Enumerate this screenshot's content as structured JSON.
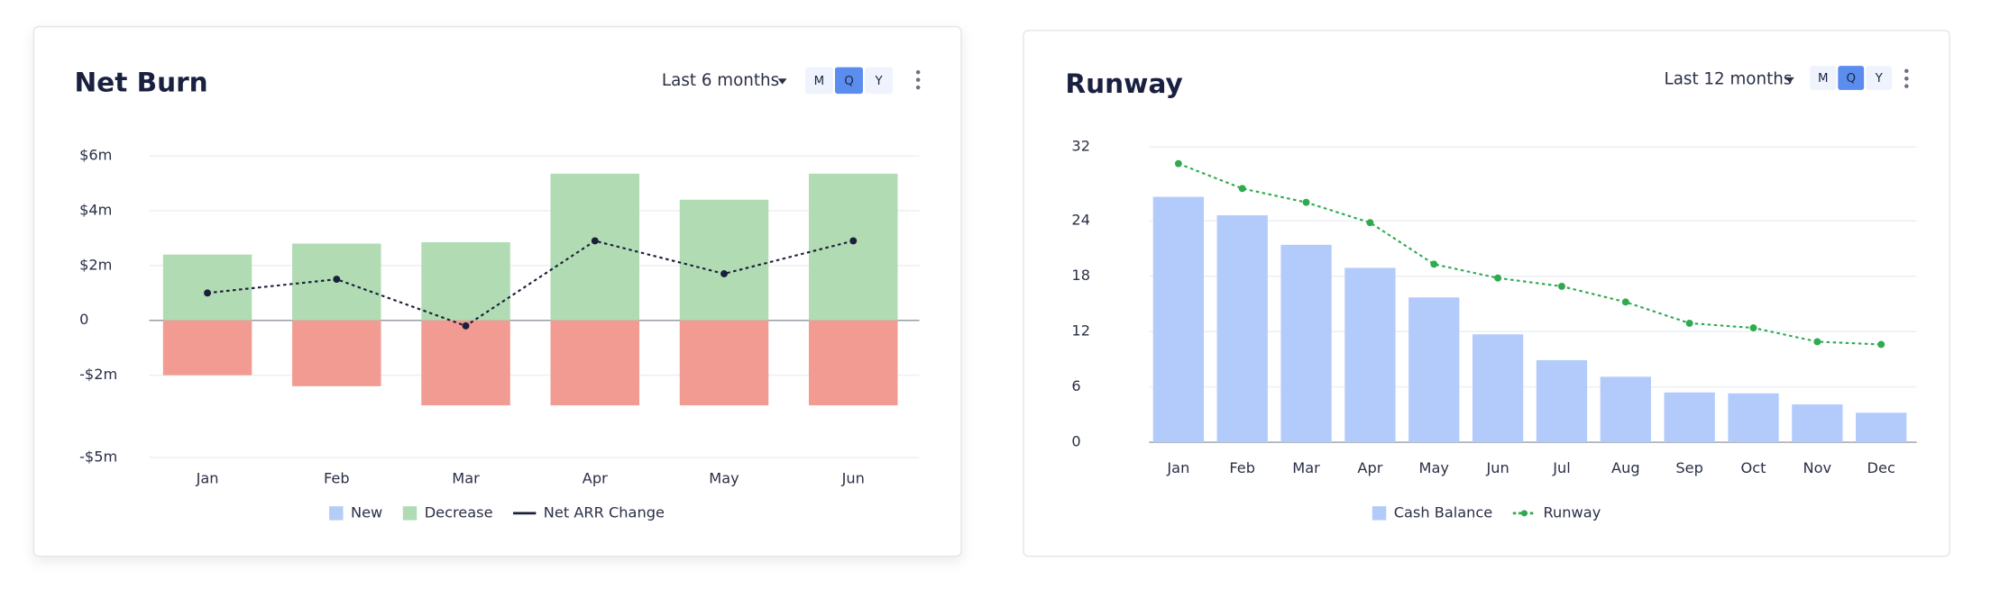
{
  "chart_data": [
    {
      "type": "bar",
      "title": "Net Burn",
      "range": "Last 6 months",
      "periods": [
        "M",
        "Q",
        "Y"
      ],
      "selected_period": 1,
      "categories": [
        "Jan",
        "Feb",
        "Mar",
        "Apr",
        "May",
        "Jun"
      ],
      "ylim": [
        -5,
        6
      ],
      "yticks": [
        {
          "value": 6,
          "label": "$6m"
        },
        {
          "value": 4,
          "label": "$4m"
        },
        {
          "value": 2,
          "label": "$2m"
        },
        0,
        {
          "value": -2,
          "label": "-$2m"
        },
        {
          "value": -5,
          "label": "-$5m"
        }
      ],
      "grid": true,
      "series": [
        {
          "name": "New",
          "type": "bar",
          "color": "#b3cdf7",
          "values": [
            null,
            null,
            null,
            null,
            null,
            null
          ]
        },
        {
          "name": "Decrease",
          "type": "bar",
          "color": "#b1dbb3",
          "values": [
            2.4,
            2.8,
            2.85,
            5.35,
            4.4,
            5.35
          ]
        },
        {
          "type": "bar",
          "color": "#f19b92",
          "values": [
            -2,
            -2.4,
            -3.1,
            -3.1,
            -3.1,
            -3.1
          ]
        },
        {
          "name": "Net ARR Change",
          "type": "line",
          "color": "#1a1f3a",
          "values": [
            1.0,
            1.5,
            -0.2,
            2.9,
            1.7,
            2.9
          ]
        }
      ]
    },
    {
      "type": "bar",
      "title": "Runway",
      "range": "Last 12 months",
      "periods": [
        "M",
        "Q",
        "Y"
      ],
      "selected_period": 1,
      "categories": [
        "Jan",
        "Feb",
        "Mar",
        "Apr",
        "May",
        "Jun",
        "Jul",
        "Aug",
        "Sep",
        "Oct",
        "Nov",
        "Dec"
      ],
      "ylim": [
        0,
        32
      ],
      "yticks": [
        32,
        24,
        18,
        12,
        6,
        0
      ],
      "grid": true,
      "series": [
        {
          "name": "Cash Balance",
          "type": "bar",
          "color": "#b3cbfa",
          "values": [
            26.6,
            24.6,
            21.4,
            18.9,
            15.7,
            11.7,
            8.9,
            7.1,
            5.4,
            5.3,
            4.1,
            3.2
          ]
        },
        {
          "name": "Runway",
          "type": "line",
          "color": "#2eaa4f",
          "values": [
            30.2,
            27.5,
            26.0,
            23.8,
            19.3,
            17.8,
            16.9,
            15.2,
            12.9,
            12.4,
            10.9,
            10.6
          ]
        }
      ]
    }
  ]
}
